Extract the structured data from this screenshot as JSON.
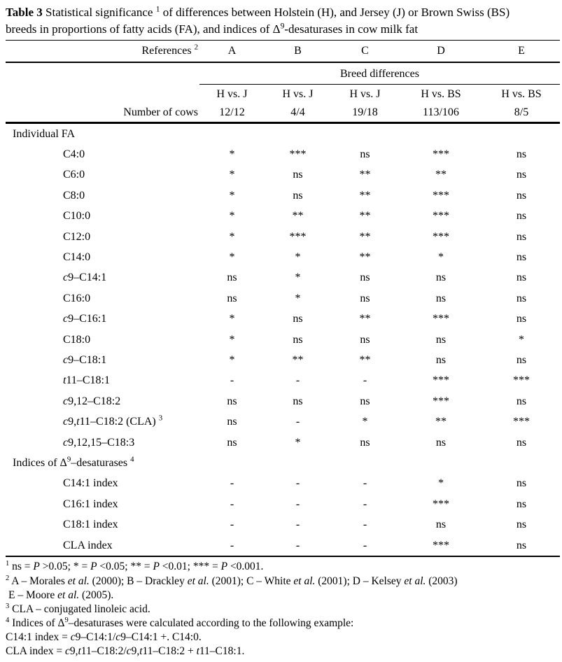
{
  "page": {
    "background": "#ffffff",
    "text_color": "#000000"
  },
  "title": {
    "lines": [
      {
        "segments": [
          {
            "t": "Table 3",
            "b": true
          },
          {
            "t": " Statistical significance "
          },
          {
            "t": "1",
            "sup": true
          },
          {
            "t": " of differences between Holstein (H), and Jersey (J) or Brown Swiss (BS)"
          }
        ]
      },
      {
        "segments": [
          {
            "t": "breeds in proportions of fatty acids (FA), and indices of Δ"
          },
          {
            "t": "9",
            "sup": true
          },
          {
            "t": "-desaturases in cow milk fat"
          }
        ]
      }
    ]
  },
  "header": {
    "references_label": [
      {
        "t": "References "
      },
      {
        "t": "2",
        "sup": true
      }
    ],
    "column_letters": [
      "A",
      "B",
      "C",
      "D",
      "E"
    ],
    "breed_differences_label": "Breed differences",
    "comparisons": [
      "H vs. J",
      "H vs. J",
      "H vs. J",
      "H vs. BS",
      "H vs. BS"
    ],
    "number_of_cows_label": "Number of cows",
    "cow_counts": [
      "12/12",
      "4/4",
      "19/18",
      "113/106",
      "8/5"
    ]
  },
  "rows": [
    {
      "section": true,
      "label": [
        {
          "t": "Individual FA"
        }
      ]
    },
    {
      "label": [
        {
          "t": "C4:0"
        }
      ],
      "cells": [
        "*",
        "***",
        "ns",
        "***",
        "ns"
      ]
    },
    {
      "label": [
        {
          "t": "C6:0"
        }
      ],
      "cells": [
        "*",
        "ns",
        "**",
        "**",
        "ns"
      ]
    },
    {
      "label": [
        {
          "t": "C8:0"
        }
      ],
      "cells": [
        "*",
        "ns",
        "**",
        "***",
        "ns"
      ]
    },
    {
      "label": [
        {
          "t": "C10:0"
        }
      ],
      "cells": [
        "*",
        "**",
        "**",
        "***",
        "ns"
      ]
    },
    {
      "label": [
        {
          "t": "C12:0"
        }
      ],
      "cells": [
        "*",
        "***",
        "**",
        "***",
        "ns"
      ]
    },
    {
      "label": [
        {
          "t": "C14:0"
        }
      ],
      "cells": [
        "*",
        "*",
        "**",
        "*",
        "ns"
      ]
    },
    {
      "label": [
        {
          "t": "c",
          "i": true
        },
        {
          "t": "9–C14:1"
        }
      ],
      "cells": [
        "ns",
        "*",
        "ns",
        "ns",
        "ns"
      ]
    },
    {
      "label": [
        {
          "t": "C16:0"
        }
      ],
      "cells": [
        "ns",
        "*",
        "ns",
        "ns",
        "ns"
      ]
    },
    {
      "label": [
        {
          "t": "c",
          "i": true
        },
        {
          "t": "9–C16:1"
        }
      ],
      "cells": [
        "*",
        "ns",
        "**",
        "***",
        "ns"
      ]
    },
    {
      "label": [
        {
          "t": "C18:0"
        }
      ],
      "cells": [
        "*",
        "ns",
        "ns",
        "ns",
        "*"
      ]
    },
    {
      "label": [
        {
          "t": "c",
          "i": true
        },
        {
          "t": "9–C18:1"
        }
      ],
      "cells": [
        "*",
        "**",
        "**",
        "ns",
        "ns"
      ]
    },
    {
      "label": [
        {
          "t": "t",
          "i": true
        },
        {
          "t": "11–C18:1"
        }
      ],
      "cells": [
        "-",
        "-",
        "-",
        "***",
        "***"
      ]
    },
    {
      "label": [
        {
          "t": "c",
          "i": true
        },
        {
          "t": "9,12–C18:2"
        }
      ],
      "cells": [
        "ns",
        "ns",
        "ns",
        "***",
        "ns"
      ]
    },
    {
      "label": [
        {
          "t": "c",
          "i": true
        },
        {
          "t": "9,"
        },
        {
          "t": "t",
          "i": true
        },
        {
          "t": "11–C18:2 (CLA) "
        },
        {
          "t": "3",
          "sup": true
        }
      ],
      "cells": [
        "ns",
        "-",
        "*",
        "**",
        "***"
      ]
    },
    {
      "label": [
        {
          "t": "c",
          "i": true
        },
        {
          "t": "9,12,15–C18:3"
        }
      ],
      "cells": [
        "ns",
        "*",
        "ns",
        "ns",
        "ns"
      ]
    },
    {
      "section": true,
      "label": [
        {
          "t": "Indices of Δ"
        },
        {
          "t": "9",
          "sup": true
        },
        {
          "t": "–desaturases "
        },
        {
          "t": "4",
          "sup": true
        }
      ]
    },
    {
      "label": [
        {
          "t": "C14:1 index"
        }
      ],
      "cells": [
        "-",
        "-",
        "-",
        "*",
        "ns"
      ]
    },
    {
      "label": [
        {
          "t": "C16:1 index"
        }
      ],
      "cells": [
        "-",
        "-",
        "-",
        "***",
        "ns"
      ]
    },
    {
      "label": [
        {
          "t": "C18:1 index"
        }
      ],
      "cells": [
        "-",
        "-",
        "-",
        "ns",
        "ns"
      ]
    },
    {
      "label": [
        {
          "t": "CLA index"
        }
      ],
      "cells": [
        "-",
        "-",
        "-",
        "***",
        "ns"
      ]
    }
  ],
  "footnotes": [
    {
      "first": true,
      "segments": [
        {
          "t": "1",
          "sup": true
        },
        {
          "t": " ns = "
        },
        {
          "t": "P",
          "i": true
        },
        {
          "t": " >0.05; * = "
        },
        {
          "t": "P",
          "i": true
        },
        {
          "t": " <0.05; ** = "
        },
        {
          "t": "P",
          "i": true
        },
        {
          "t": " <0.01; *** = "
        },
        {
          "t": "P",
          "i": true
        },
        {
          "t": " <0.001."
        }
      ]
    },
    {
      "segments": [
        {
          "t": "2",
          "sup": true
        },
        {
          "t": " A – Morales "
        },
        {
          "t": "et al.",
          "i": true
        },
        {
          "t": " (2000); B – Drackley "
        },
        {
          "t": "et al.",
          "i": true
        },
        {
          "t": " (2001); C – White "
        },
        {
          "t": "et al.",
          "i": true
        },
        {
          "t": " (2001); D – Kelsey "
        },
        {
          "t": "et al.",
          "i": true
        },
        {
          "t": " (2003)"
        }
      ]
    },
    {
      "indent": true,
      "segments": [
        {
          "t": "E – Moore "
        },
        {
          "t": "et al.",
          "i": true
        },
        {
          "t": " (2005)."
        }
      ]
    },
    {
      "segments": [
        {
          "t": "3",
          "sup": true
        },
        {
          "t": " CLA – conjugated linoleic acid."
        }
      ]
    },
    {
      "segments": [
        {
          "t": "4",
          "sup": true
        },
        {
          "t": " Indices of Δ"
        },
        {
          "t": "9",
          "sup": true
        },
        {
          "t": "–desaturases were calculated according to the following example:"
        }
      ]
    },
    {
      "segments": [
        {
          "t": "C14:1 index = "
        },
        {
          "t": "c",
          "i": true
        },
        {
          "t": "9–C14:1/"
        },
        {
          "t": "c",
          "i": true
        },
        {
          "t": "9–C14:1 +. C14:0."
        }
      ]
    },
    {
      "segments": [
        {
          "t": "CLA index = "
        },
        {
          "t": "c",
          "i": true
        },
        {
          "t": "9,"
        },
        {
          "t": "t",
          "i": true
        },
        {
          "t": "11–C18:2/"
        },
        {
          "t": "c",
          "i": true
        },
        {
          "t": "9,"
        },
        {
          "t": "t",
          "i": true
        },
        {
          "t": "11–C18:2 + "
        },
        {
          "t": "t",
          "i": true
        },
        {
          "t": "11–C18:1."
        }
      ]
    }
  ]
}
